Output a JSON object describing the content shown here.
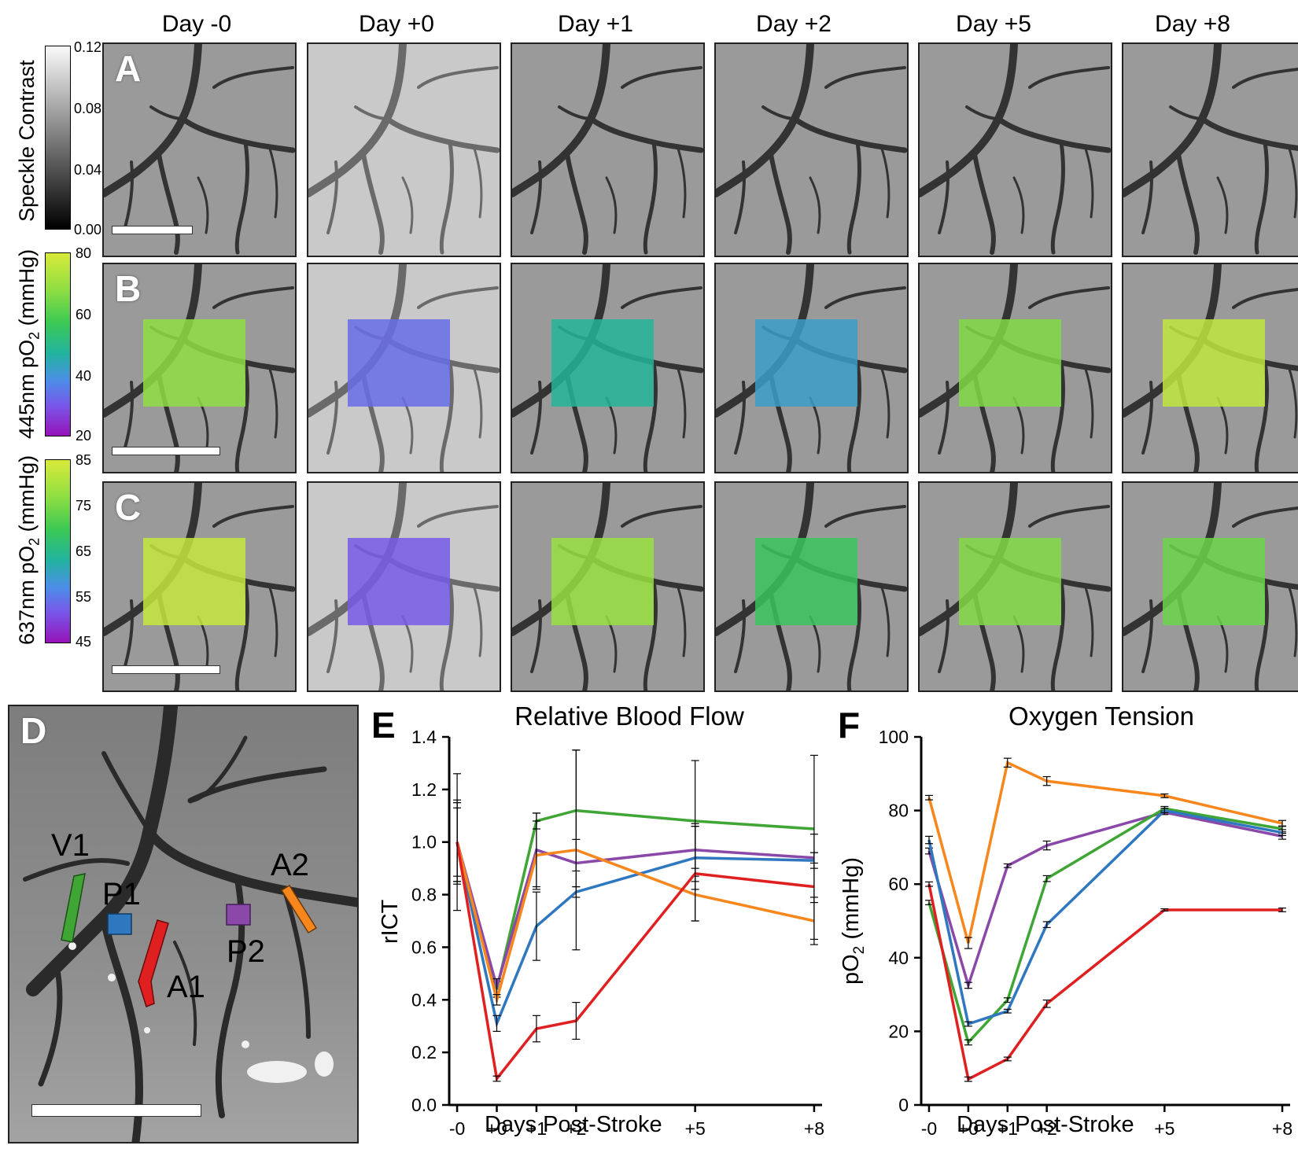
{
  "days": [
    "Day -0",
    "Day +0",
    "Day +1",
    "Day +2",
    "Day +5",
    "Day +8"
  ],
  "panels": {
    "A": {
      "letter": "A",
      "colorbar_label": "Speckle Contrast",
      "ticks": [
        "0.12",
        "0.08",
        "0.04",
        "0.00"
      ]
    },
    "B": {
      "letter": "B",
      "colorbar_label": "445nm pO",
      "colorbar_sub": "2",
      "colorbar_unit": " (mmHg)",
      "ticks": [
        "80",
        "60",
        "40",
        "20"
      ],
      "overlay_levels": [
        68,
        33,
        48,
        42,
        66,
        76
      ]
    },
    "C": {
      "letter": "C",
      "colorbar_label": "637nm pO",
      "colorbar_sub": "2",
      "colorbar_unit": " (mmHg)",
      "ticks": [
        "85",
        "75",
        "65",
        "55",
        "45"
      ],
      "overlay_levels": [
        83,
        52,
        78,
        69,
        76,
        74
      ]
    },
    "D": {
      "letter": "D",
      "regions": [
        {
          "label": "V1",
          "color": "#3fa535"
        },
        {
          "label": "P1",
          "color": "#2f78c0"
        },
        {
          "label": "A1",
          "color": "#e02020"
        },
        {
          "label": "P2",
          "color": "#8a49a8"
        },
        {
          "label": "A2",
          "color": "#f7861c"
        }
      ]
    }
  },
  "chart_data": [
    {
      "panel": "E",
      "type": "line",
      "title": "Relative Blood Flow",
      "xlabel": "Days Post-Stroke",
      "ylabel": "rICT",
      "x": [
        0,
        1,
        2,
        3,
        6,
        9
      ],
      "xtick_labels": [
        "-0",
        "+0",
        "+1",
        "+2",
        "+5",
        "+8"
      ],
      "ylim": [
        0.0,
        1.4
      ],
      "yticks": [
        "0.0",
        "0.2",
        "0.4",
        "0.6",
        "0.8",
        "1.0",
        "1.2",
        "1.4"
      ],
      "series": [
        {
          "color": "#3fa535",
          "values": [
            1.0,
            0.44,
            1.08,
            1.12,
            1.08,
            1.05
          ],
          "err": [
            0.13,
            0.03,
            0.03,
            0.23,
            0.23,
            0.28
          ]
        },
        {
          "color": "#8a49a8",
          "values": [
            1.0,
            0.45,
            0.97,
            0.92,
            0.97,
            0.94
          ],
          "err": [
            0.15,
            0.03,
            0.14,
            0.09,
            0.1,
            0.02
          ]
        },
        {
          "color": "#2f78c0",
          "values": [
            1.0,
            0.31,
            0.68,
            0.81,
            0.94,
            0.93
          ],
          "err": [
            0.15,
            0.03,
            0.13,
            0.02,
            0.12,
            0.03
          ]
        },
        {
          "color": "#f7861c",
          "values": [
            1.0,
            0.4,
            0.95,
            0.97,
            0.8,
            0.7
          ],
          "err": [
            0.26,
            0.02,
            0.13,
            0.38,
            0.1,
            0.09
          ]
        },
        {
          "color": "#e02020",
          "values": [
            1.0,
            0.1,
            0.29,
            0.32,
            0.88,
            0.83
          ],
          "err": [
            0.16,
            0.01,
            0.05,
            0.07,
            0.18,
            0.2
          ]
        }
      ]
    },
    {
      "panel": "F",
      "type": "line",
      "title": "Oxygen Tension",
      "xlabel": "Days Post-Stroke",
      "ylabel": "pO",
      "ylabel_sub": "2",
      "ylabel_unit": " (mmHg)",
      "x": [
        0,
        1,
        2,
        3,
        6,
        9
      ],
      "xtick_labels": [
        "-0",
        "+0",
        "+1",
        "+2",
        "+5",
        "+8"
      ],
      "ylim": [
        0,
        100
      ],
      "yticks": [
        "0",
        "20",
        "40",
        "60",
        "80",
        "100"
      ],
      "series": [
        {
          "color": "#f7861c",
          "values": [
            83.5,
            44.0,
            93.0,
            88.0,
            84.0,
            76.5
          ],
          "err": [
            0.6,
            1.5,
            1.2,
            1.2,
            0.5,
            0.8
          ]
        },
        {
          "color": "#8a49a8",
          "values": [
            69.0,
            32.5,
            65.0,
            70.5,
            79.5,
            73.0
          ],
          "err": [
            0.8,
            0.8,
            0.5,
            1.2,
            0.6,
            0.8
          ]
        },
        {
          "color": "#3fa535",
          "values": [
            55.0,
            17.0,
            28.5,
            61.5,
            80.5,
            75.0
          ],
          "err": [
            0.6,
            0.7,
            0.6,
            0.8,
            0.6,
            0.8
          ]
        },
        {
          "color": "#2f78c0",
          "values": [
            72.0,
            22.0,
            25.5,
            49.0,
            80.0,
            74.0
          ],
          "err": [
            1.0,
            0.6,
            0.5,
            0.8,
            0.6,
            0.8
          ]
        },
        {
          "color": "#e02020",
          "values": [
            60.0,
            7.0,
            12.5,
            27.5,
            53.0,
            53.0
          ],
          "err": [
            0.6,
            0.6,
            0.5,
            1.0,
            0.3,
            0.5
          ]
        }
      ]
    }
  ]
}
